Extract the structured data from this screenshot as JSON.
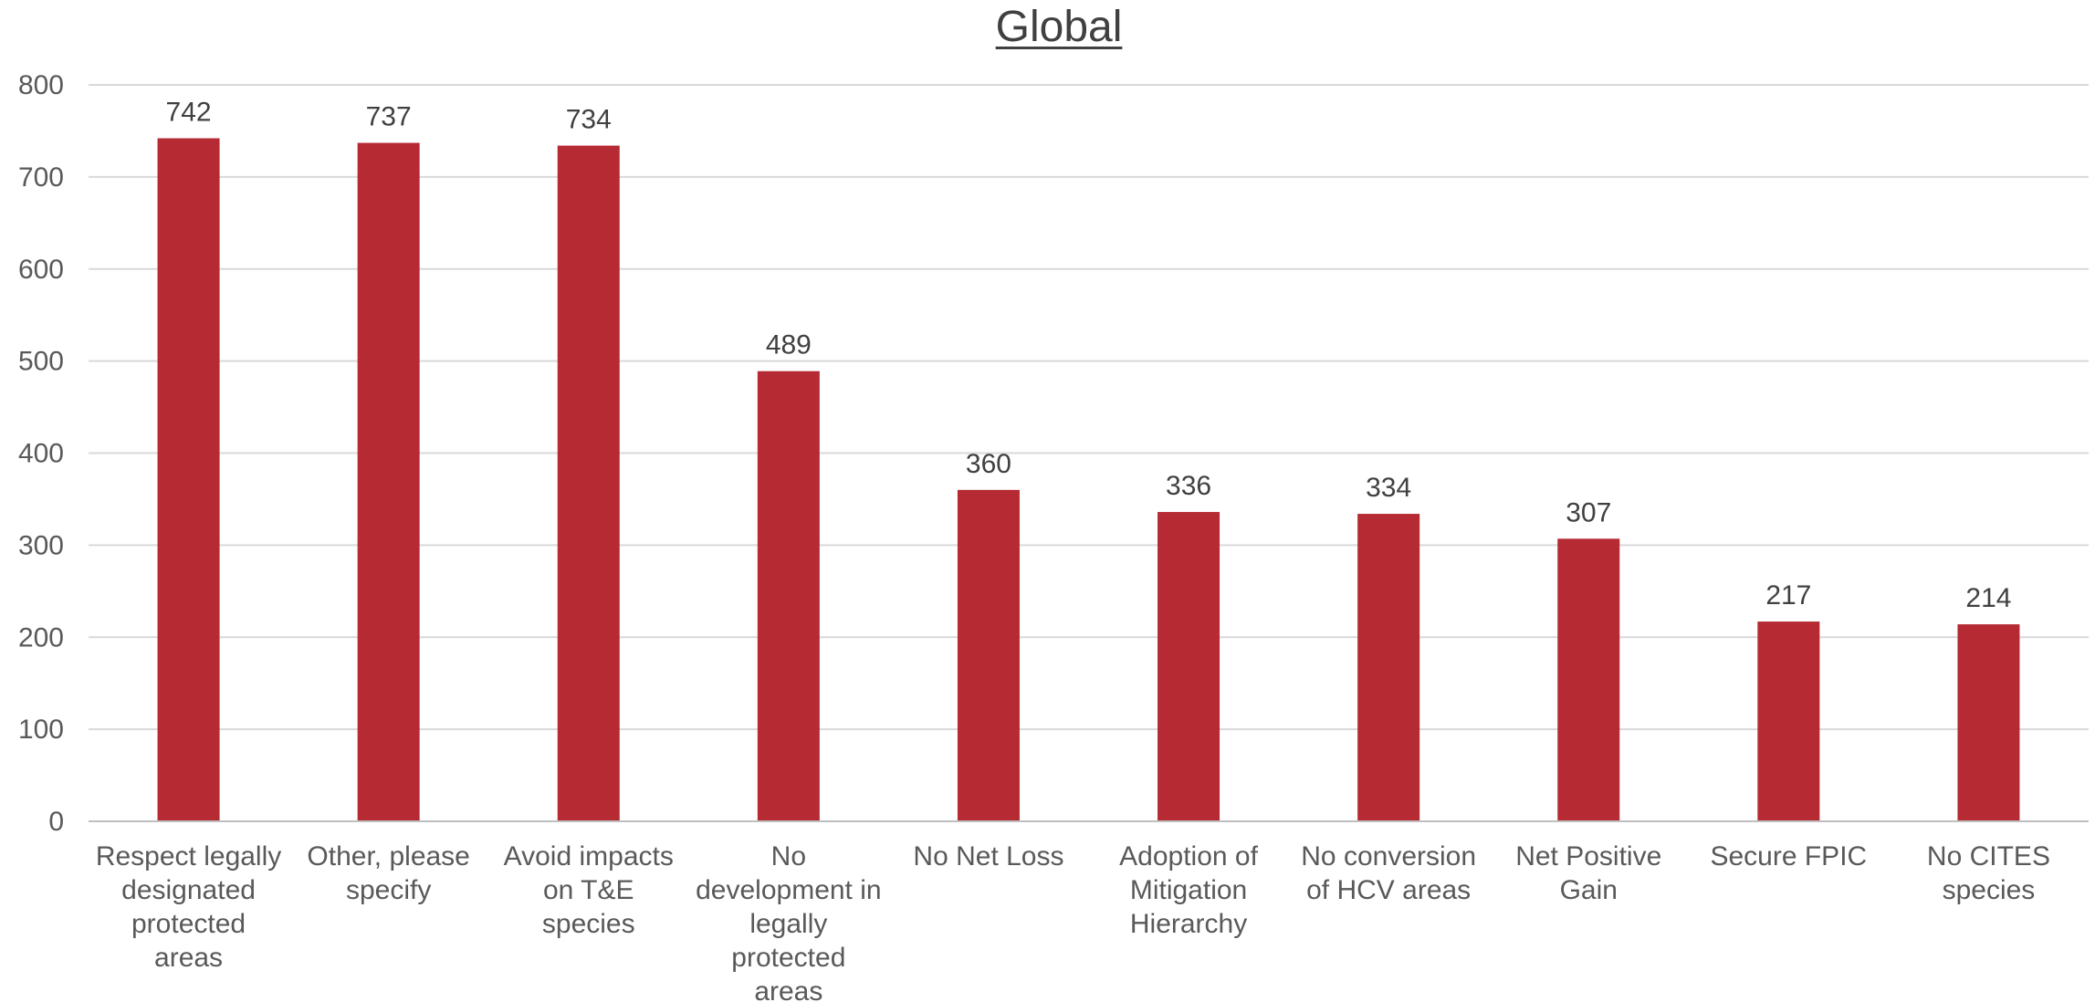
{
  "chart_data": {
    "type": "bar",
    "title": "Global",
    "categories": [
      "Respect legally designated protected areas",
      "Other, please specify",
      "Avoid impacts on T&E species",
      "No development in legally protected areas",
      "No Net Loss",
      "Adoption of Mitigation Hierarchy",
      "No conversion of HCV areas",
      "Net Positive Gain",
      "Secure FPIC",
      "No CITES species"
    ],
    "category_lines": [
      [
        "Respect legally",
        "designated",
        "protected",
        "areas"
      ],
      [
        "Other, please",
        "specify"
      ],
      [
        "Avoid impacts",
        "on T&E",
        "species"
      ],
      [
        "No",
        "development in",
        "legally",
        "protected",
        "areas"
      ],
      [
        "No Net Loss"
      ],
      [
        "Adoption of",
        "Mitigation",
        "Hierarchy"
      ],
      [
        "No conversion",
        "of HCV areas"
      ],
      [
        "Net Positive",
        "Gain"
      ],
      [
        "Secure FPIC"
      ],
      [
        "No CITES",
        "species"
      ]
    ],
    "values": [
      742,
      737,
      734,
      489,
      360,
      336,
      334,
      307,
      217,
      214
    ],
    "ylim": [
      0,
      800
    ],
    "yticks": [
      0,
      100,
      200,
      300,
      400,
      500,
      600,
      700,
      800
    ],
    "xlabel": "",
    "ylabel": "",
    "grid": true,
    "legend": "none",
    "data_labels": true,
    "colors": {
      "bar": "#B52A33",
      "grid": "#D9D9D9",
      "axis": "#BFBFBF"
    }
  }
}
